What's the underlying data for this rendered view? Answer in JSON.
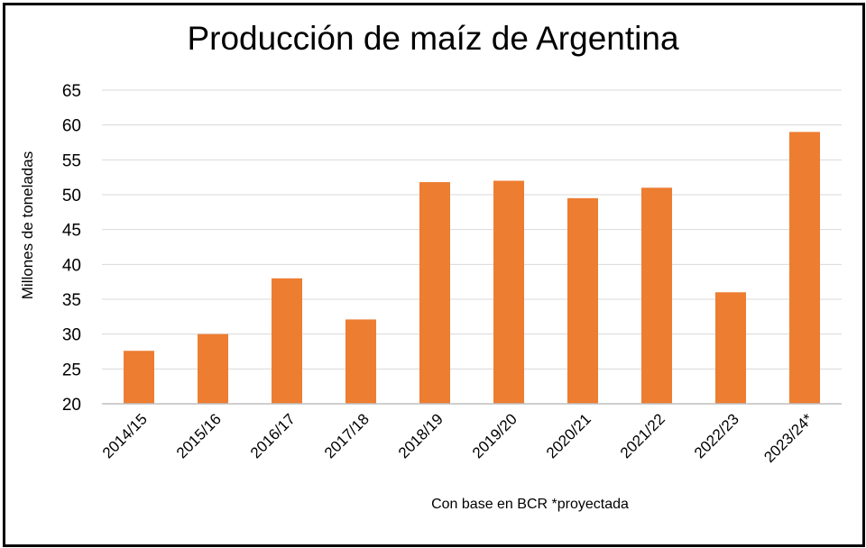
{
  "chart_data": {
    "type": "bar",
    "title": "Producción de maíz de Argentina",
    "ylabel": "Millones de toneladas",
    "xlabel": "",
    "note": "Con base en BCR *proyectada",
    "categories": [
      "2014/15",
      "2015/16",
      "2016/17",
      "2017/18",
      "2018/19",
      "2019/20",
      "2020/21",
      "2021/22",
      "2022/23",
      "2023/24*"
    ],
    "values": [
      27.6,
      30.0,
      38.0,
      32.1,
      51.8,
      52.0,
      49.5,
      51.0,
      36.0,
      59.0
    ],
    "ylim": [
      20,
      65
    ],
    "yticks": [
      20,
      25,
      30,
      35,
      40,
      45,
      50,
      55,
      60,
      65
    ],
    "grid": true,
    "legend": "none",
    "colors": {
      "bar": "#ED7D31",
      "grid": "#D9D9D9",
      "axis": "#BFBFBF"
    }
  }
}
